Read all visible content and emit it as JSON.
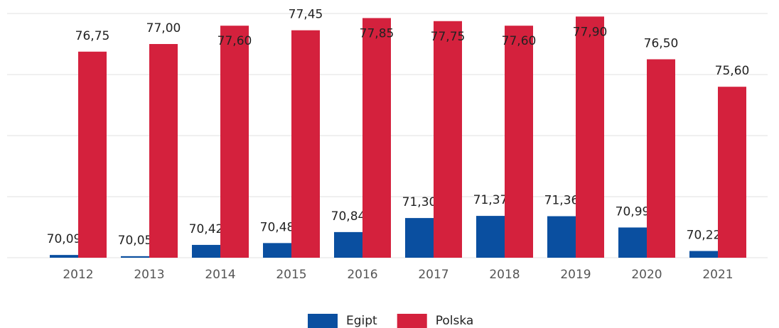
{
  "chart_data": {
    "type": "bar",
    "categories": [
      "2012",
      "2013",
      "2014",
      "2015",
      "2016",
      "2017",
      "2018",
      "2019",
      "2020",
      "2021"
    ],
    "series": [
      {
        "name": "Egipt",
        "color": "#0a4fa0",
        "values": [
          70.09,
          70.05,
          70.42,
          70.48,
          70.84,
          71.3,
          71.37,
          71.36,
          70.99,
          70.22
        ],
        "value_labels": [
          "70,09",
          "70,05",
          "70,42",
          "70,48",
          "70,84",
          "71,30",
          "71,37",
          "71,36",
          "70,99",
          "70,22"
        ]
      },
      {
        "name": "Polska",
        "color": "#d4213d",
        "values": [
          76.75,
          77.0,
          77.6,
          77.45,
          77.85,
          77.75,
          77.6,
          77.9,
          76.5,
          75.6
        ],
        "value_labels": [
          "76,75",
          "77,00",
          "77,60",
          "77,45",
          "77,85",
          "77,75",
          "77,60",
          "77,90",
          "76,50",
          "75,60"
        ]
      }
    ],
    "ylim": [
      70,
      78
    ],
    "yticks": [
      70,
      72,
      74,
      76,
      78
    ],
    "grid": true,
    "legend": "bottom"
  }
}
